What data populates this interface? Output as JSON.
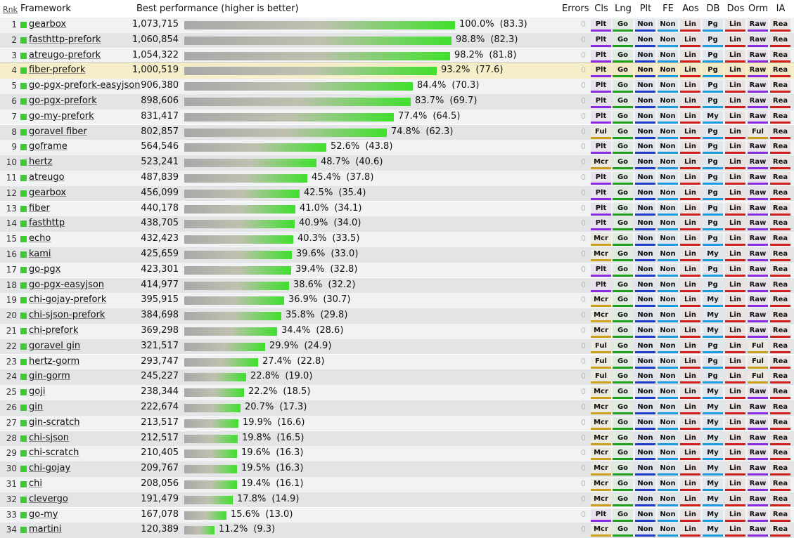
{
  "header": {
    "rank": "Rnk",
    "framework": "Framework",
    "best": "Best performance (higher is better)",
    "errors": "Errors",
    "columns": [
      "Cls",
      "Lng",
      "Plt",
      "FE",
      "Aos",
      "DB",
      "Dos",
      "Orm",
      "IA"
    ]
  },
  "highlight_rank": 4,
  "colors": {
    "bar_green": "#3fe02c",
    "square": "#3dcc2e",
    "highlight_row": "#f6edc9"
  },
  "chart_data": {
    "type": "bar",
    "title": "Best performance (higher is better)",
    "categories": [
      "gearbox",
      "fasthttp-prefork",
      "atreugo-prefork",
      "fiber-prefork",
      "go-pgx-prefork-easyjson",
      "go-pgx-prefork",
      "go-my-prefork",
      "goravel fiber",
      "goframe",
      "hertz",
      "atreugo",
      "gearbox",
      "fiber",
      "fasthttp",
      "echo",
      "kami",
      "go-pgx",
      "go-pgx-easyjson",
      "chi-gojay-prefork",
      "chi-sjson-prefork",
      "chi-prefork",
      "goravel gin",
      "hertz-gorm",
      "gin-gorm",
      "goji",
      "gin",
      "gin-scratch",
      "chi-sjson",
      "chi-scratch",
      "chi-gojay",
      "chi",
      "clevergo",
      "go-my",
      "martini"
    ],
    "values": [
      1073715,
      1060854,
      1054322,
      1000519,
      906380,
      898606,
      831417,
      802857,
      564546,
      523241,
      487839,
      456099,
      440178,
      438705,
      432423,
      425659,
      423301,
      414977,
      395915,
      384698,
      369298,
      321517,
      293747,
      245227,
      238344,
      222674,
      213517,
      212517,
      210405,
      209767,
      208056,
      191479,
      167078,
      120389
    ]
  },
  "rows": [
    {
      "rank": "1",
      "name": "gearbox",
      "rps": "1,073,715",
      "pct": "100.0%",
      "sec": "(83.3)",
      "err": "0",
      "tags": [
        "Plt",
        "Go",
        "Non",
        "Non",
        "Lin",
        "Pg",
        "Lin",
        "Raw",
        "Rea"
      ]
    },
    {
      "rank": "2",
      "name": "fasthttp-prefork",
      "rps": "1,060,854",
      "pct": "98.8%",
      "sec": "(82.3)",
      "err": "0",
      "tags": [
        "Plt",
        "Go",
        "Non",
        "Non",
        "Lin",
        "Pg",
        "Lin",
        "Raw",
        "Rea"
      ]
    },
    {
      "rank": "3",
      "name": "atreugo-prefork",
      "rps": "1,054,322",
      "pct": "98.2%",
      "sec": "(81.8)",
      "err": "0",
      "tags": [
        "Plt",
        "Go",
        "Non",
        "Non",
        "Lin",
        "Pg",
        "Lin",
        "Raw",
        "Rea"
      ]
    },
    {
      "rank": "4",
      "name": "fiber-prefork",
      "rps": "1,000,519",
      "pct": "93.2%",
      "sec": "(77.6)",
      "err": "0",
      "tags": [
        "Plt",
        "Go",
        "Non",
        "Non",
        "Lin",
        "Pg",
        "Lin",
        "Raw",
        "Rea"
      ]
    },
    {
      "rank": "5",
      "name": "go-pgx-prefork-easyjson",
      "rps": "906,380",
      "pct": "84.4%",
      "sec": "(70.3)",
      "err": "0",
      "tags": [
        "Plt",
        "Go",
        "Non",
        "Non",
        "Lin",
        "Pg",
        "Lin",
        "Raw",
        "Rea"
      ]
    },
    {
      "rank": "6",
      "name": "go-pgx-prefork",
      "rps": "898,606",
      "pct": "83.7%",
      "sec": "(69.7)",
      "err": "0",
      "tags": [
        "Plt",
        "Go",
        "Non",
        "Non",
        "Lin",
        "Pg",
        "Lin",
        "Raw",
        "Rea"
      ]
    },
    {
      "rank": "7",
      "name": "go-my-prefork",
      "rps": "831,417",
      "pct": "77.4%",
      "sec": "(64.5)",
      "err": "0",
      "tags": [
        "Plt",
        "Go",
        "Non",
        "Non",
        "Lin",
        "My",
        "Lin",
        "Raw",
        "Rea"
      ]
    },
    {
      "rank": "8",
      "name": "goravel fiber",
      "rps": "802,857",
      "pct": "74.8%",
      "sec": "(62.3)",
      "err": "0",
      "tags": [
        "Ful",
        "Go",
        "Non",
        "Non",
        "Lin",
        "Pg",
        "Lin",
        "Ful",
        "Rea"
      ]
    },
    {
      "rank": "9",
      "name": "goframe",
      "rps": "564,546",
      "pct": "52.6%",
      "sec": "(43.8)",
      "err": "0",
      "tags": [
        "Plt",
        "Go",
        "Non",
        "Non",
        "Lin",
        "Pg",
        "Lin",
        "Raw",
        "Rea"
      ]
    },
    {
      "rank": "10",
      "name": "hertz",
      "rps": "523,241",
      "pct": "48.7%",
      "sec": "(40.6)",
      "err": "0",
      "tags": [
        "Mcr",
        "Go",
        "Non",
        "Non",
        "Lin",
        "Pg",
        "Lin",
        "Raw",
        "Rea"
      ]
    },
    {
      "rank": "11",
      "name": "atreugo",
      "rps": "487,839",
      "pct": "45.4%",
      "sec": "(37.8)",
      "err": "0",
      "tags": [
        "Plt",
        "Go",
        "Non",
        "Non",
        "Lin",
        "Pg",
        "Lin",
        "Raw",
        "Rea"
      ]
    },
    {
      "rank": "12",
      "name": "gearbox",
      "rps": "456,099",
      "pct": "42.5%",
      "sec": "(35.4)",
      "err": "0",
      "tags": [
        "Plt",
        "Go",
        "Non",
        "Non",
        "Lin",
        "Pg",
        "Lin",
        "Raw",
        "Rea"
      ]
    },
    {
      "rank": "13",
      "name": "fiber",
      "rps": "440,178",
      "pct": "41.0%",
      "sec": "(34.1)",
      "err": "0",
      "tags": [
        "Plt",
        "Go",
        "Non",
        "Non",
        "Lin",
        "Pg",
        "Lin",
        "Raw",
        "Rea"
      ]
    },
    {
      "rank": "14",
      "name": "fasthttp",
      "rps": "438,705",
      "pct": "40.9%",
      "sec": "(34.0)",
      "err": "0",
      "tags": [
        "Plt",
        "Go",
        "Non",
        "Non",
        "Lin",
        "Pg",
        "Lin",
        "Raw",
        "Rea"
      ]
    },
    {
      "rank": "15",
      "name": "echo",
      "rps": "432,423",
      "pct": "40.3%",
      "sec": "(33.5)",
      "err": "0",
      "tags": [
        "Mcr",
        "Go",
        "Non",
        "Non",
        "Lin",
        "Pg",
        "Lin",
        "Raw",
        "Rea"
      ]
    },
    {
      "rank": "16",
      "name": "kami",
      "rps": "425,659",
      "pct": "39.6%",
      "sec": "(33.0)",
      "err": "0",
      "tags": [
        "Mcr",
        "Go",
        "Non",
        "Non",
        "Lin",
        "My",
        "Lin",
        "Raw",
        "Rea"
      ]
    },
    {
      "rank": "17",
      "name": "go-pgx",
      "rps": "423,301",
      "pct": "39.4%",
      "sec": "(32.8)",
      "err": "0",
      "tags": [
        "Plt",
        "Go",
        "Non",
        "Non",
        "Lin",
        "Pg",
        "Lin",
        "Raw",
        "Rea"
      ]
    },
    {
      "rank": "18",
      "name": "go-pgx-easyjson",
      "rps": "414,977",
      "pct": "38.6%",
      "sec": "(32.2)",
      "err": "0",
      "tags": [
        "Plt",
        "Go",
        "Non",
        "Non",
        "Lin",
        "Pg",
        "Lin",
        "Raw",
        "Rea"
      ]
    },
    {
      "rank": "19",
      "name": "chi-gojay-prefork",
      "rps": "395,915",
      "pct": "36.9%",
      "sec": "(30.7)",
      "err": "0",
      "tags": [
        "Mcr",
        "Go",
        "Non",
        "Non",
        "Lin",
        "My",
        "Lin",
        "Raw",
        "Rea"
      ]
    },
    {
      "rank": "20",
      "name": "chi-sjson-prefork",
      "rps": "384,698",
      "pct": "35.8%",
      "sec": "(29.8)",
      "err": "0",
      "tags": [
        "Mcr",
        "Go",
        "Non",
        "Non",
        "Lin",
        "My",
        "Lin",
        "Raw",
        "Rea"
      ]
    },
    {
      "rank": "21",
      "name": "chi-prefork",
      "rps": "369,298",
      "pct": "34.4%",
      "sec": "(28.6)",
      "err": "0",
      "tags": [
        "Mcr",
        "Go",
        "Non",
        "Non",
        "Lin",
        "My",
        "Lin",
        "Raw",
        "Rea"
      ]
    },
    {
      "rank": "22",
      "name": "goravel gin",
      "rps": "321,517",
      "pct": "29.9%",
      "sec": "(24.9)",
      "err": "0",
      "tags": [
        "Ful",
        "Go",
        "Non",
        "Non",
        "Lin",
        "Pg",
        "Lin",
        "Ful",
        "Rea"
      ]
    },
    {
      "rank": "23",
      "name": "hertz-gorm",
      "rps": "293,747",
      "pct": "27.4%",
      "sec": "(22.8)",
      "err": "0",
      "tags": [
        "Ful",
        "Go",
        "Non",
        "Non",
        "Lin",
        "Pg",
        "Lin",
        "Ful",
        "Rea"
      ]
    },
    {
      "rank": "24",
      "name": "gin-gorm",
      "rps": "245,227",
      "pct": "22.8%",
      "sec": "(19.0)",
      "err": "0",
      "tags": [
        "Ful",
        "Go",
        "Non",
        "Non",
        "Lin",
        "Pg",
        "Lin",
        "Ful",
        "Rea"
      ]
    },
    {
      "rank": "25",
      "name": "goji",
      "rps": "238,344",
      "pct": "22.2%",
      "sec": "(18.5)",
      "err": "0",
      "tags": [
        "Mcr",
        "Go",
        "Non",
        "Non",
        "Lin",
        "My",
        "Lin",
        "Raw",
        "Rea"
      ]
    },
    {
      "rank": "26",
      "name": "gin",
      "rps": "222,674",
      "pct": "20.7%",
      "sec": "(17.3)",
      "err": "0",
      "tags": [
        "Mcr",
        "Go",
        "Non",
        "Non",
        "Lin",
        "My",
        "Lin",
        "Raw",
        "Rea"
      ]
    },
    {
      "rank": "27",
      "name": "gin-scratch",
      "rps": "213,517",
      "pct": "19.9%",
      "sec": "(16.6)",
      "err": "0",
      "tags": [
        "Mcr",
        "Go",
        "Non",
        "Non",
        "Lin",
        "My",
        "Lin",
        "Raw",
        "Rea"
      ]
    },
    {
      "rank": "28",
      "name": "chi-sjson",
      "rps": "212,517",
      "pct": "19.8%",
      "sec": "(16.5)",
      "err": "0",
      "tags": [
        "Mcr",
        "Go",
        "Non",
        "Non",
        "Lin",
        "My",
        "Lin",
        "Raw",
        "Rea"
      ]
    },
    {
      "rank": "29",
      "name": "chi-scratch",
      "rps": "210,405",
      "pct": "19.6%",
      "sec": "(16.3)",
      "err": "0",
      "tags": [
        "Mcr",
        "Go",
        "Non",
        "Non",
        "Lin",
        "My",
        "Lin",
        "Raw",
        "Rea"
      ]
    },
    {
      "rank": "30",
      "name": "chi-gojay",
      "rps": "209,767",
      "pct": "19.5%",
      "sec": "(16.3)",
      "err": "0",
      "tags": [
        "Mcr",
        "Go",
        "Non",
        "Non",
        "Lin",
        "My",
        "Lin",
        "Raw",
        "Rea"
      ]
    },
    {
      "rank": "31",
      "name": "chi",
      "rps": "208,056",
      "pct": "19.4%",
      "sec": "(16.1)",
      "err": "0",
      "tags": [
        "Mcr",
        "Go",
        "Non",
        "Non",
        "Lin",
        "My",
        "Lin",
        "Raw",
        "Rea"
      ]
    },
    {
      "rank": "32",
      "name": "clevergo",
      "rps": "191,479",
      "pct": "17.8%",
      "sec": "(14.9)",
      "err": "0",
      "tags": [
        "Mcr",
        "Go",
        "Non",
        "Non",
        "Lin",
        "My",
        "Lin",
        "Raw",
        "Rea"
      ]
    },
    {
      "rank": "33",
      "name": "go-my",
      "rps": "167,078",
      "pct": "15.6%",
      "sec": "(13.0)",
      "err": "0",
      "tags": [
        "Plt",
        "Go",
        "Non",
        "Non",
        "Lin",
        "My",
        "Lin",
        "Raw",
        "Rea"
      ]
    },
    {
      "rank": "34",
      "name": "martini",
      "rps": "120,389",
      "pct": "11.2%",
      "sec": "(9.3)",
      "err": "0",
      "tags": [
        "Mcr",
        "Go",
        "Non",
        "Non",
        "Lin",
        "My",
        "Lin",
        "Raw",
        "Rea"
      ]
    }
  ]
}
